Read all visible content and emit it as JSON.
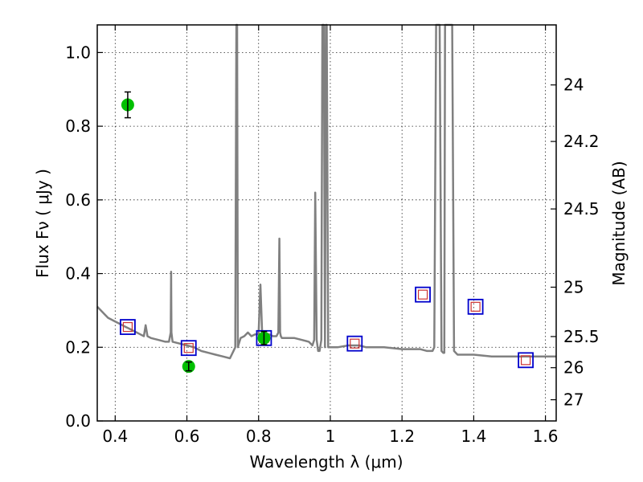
{
  "chart_data": {
    "type": "scatter",
    "xlabel": "Wavelength  λ (μm)",
    "ylabel": "Flux  Fν  ( μJy )",
    "y2label": "Magnitude (AB)",
    "xlim": [
      0.35,
      1.63
    ],
    "ylim": [
      0.0,
      1.075
    ],
    "xticks": [
      0.4,
      0.6,
      0.8,
      1.0,
      1.2,
      1.4,
      1.6
    ],
    "xtick_labels": [
      "0.4",
      "0.6",
      "0.8",
      "1",
      "1.2",
      "1.4",
      "1.6"
    ],
    "yticks": [
      0.0,
      0.2,
      0.4,
      0.6,
      0.8,
      1.0
    ],
    "ytick_labels": [
      "0.0",
      "0.2",
      "0.4",
      "0.6",
      "0.8",
      "1.0"
    ],
    "y2ticks": [
      24,
      24.2,
      24.5,
      25,
      25.5,
      26,
      27
    ],
    "y2tick_labels": [
      "24",
      "24.2",
      "24.5",
      "25",
      "25.5",
      "26",
      "27"
    ],
    "grid": true,
    "colors": {
      "model": "#808080",
      "observed": "#00c000",
      "model_band": "#0000cc",
      "model_band_inner": "#cc3333"
    },
    "model_spectrum": {
      "name": "",
      "x": [
        0.35,
        0.36,
        0.37,
        0.38,
        0.39,
        0.4,
        0.41,
        0.42,
        0.43,
        0.44,
        0.45,
        0.46,
        0.47,
        0.48,
        0.485,
        0.49,
        0.5,
        0.52,
        0.54,
        0.55,
        0.555,
        0.556,
        0.557,
        0.56,
        0.58,
        0.6,
        0.62,
        0.64,
        0.66,
        0.68,
        0.7,
        0.72,
        0.73,
        0.735,
        0.738,
        0.74,
        0.742,
        0.745,
        0.75,
        0.76,
        0.77,
        0.78,
        0.79,
        0.8,
        0.805,
        0.81,
        0.815,
        0.82,
        0.83,
        0.84,
        0.85,
        0.855,
        0.858,
        0.86,
        0.862,
        0.865,
        0.87,
        0.88,
        0.9,
        0.92,
        0.94,
        0.95,
        0.955,
        0.958,
        0.962,
        0.966,
        0.97,
        0.975,
        0.978,
        0.982,
        0.985,
        0.988,
        0.99,
        0.994,
        0.998,
        1.0,
        1.02,
        1.05,
        1.08,
        1.1,
        1.15,
        1.2,
        1.25,
        1.27,
        1.28,
        1.285,
        1.29,
        1.295,
        1.3,
        1.305,
        1.31,
        1.315,
        1.318,
        1.32,
        1.325,
        1.33,
        1.335,
        1.34,
        1.345,
        1.35,
        1.355,
        1.36,
        1.4,
        1.45,
        1.5,
        1.55,
        1.6,
        1.63
      ],
      "y": [
        0.31,
        0.3,
        0.29,
        0.28,
        0.275,
        0.27,
        0.265,
        0.26,
        0.255,
        0.25,
        0.245,
        0.24,
        0.235,
        0.23,
        0.26,
        0.23,
        0.225,
        0.22,
        0.215,
        0.215,
        0.24,
        0.405,
        0.24,
        0.215,
        0.21,
        0.205,
        0.2,
        0.19,
        0.185,
        0.18,
        0.175,
        0.17,
        0.19,
        0.2,
        1.075,
        1.075,
        0.2,
        0.21,
        0.225,
        0.23,
        0.24,
        0.23,
        0.235,
        0.235,
        0.37,
        0.235,
        0.23,
        0.235,
        0.235,
        0.23,
        0.23,
        0.24,
        0.495,
        0.24,
        0.23,
        0.225,
        0.225,
        0.225,
        0.225,
        0.22,
        0.215,
        0.205,
        0.22,
        0.62,
        0.22,
        0.19,
        0.19,
        0.22,
        1.075,
        1.075,
        0.2,
        1.075,
        1.075,
        0.2,
        0.2,
        0.2,
        0.2,
        0.205,
        0.205,
        0.2,
        0.2,
        0.195,
        0.195,
        0.19,
        0.19,
        0.19,
        0.2,
        1.075,
        1.075,
        1.075,
        0.19,
        0.185,
        0.185,
        1.075,
        1.075,
        1.075,
        1.075,
        1.075,
        0.19,
        0.185,
        0.18,
        0.18,
        0.18,
        0.175,
        0.175,
        0.175,
        0.175,
        0.175
      ]
    },
    "series": [
      {
        "name": "",
        "marker": "circle",
        "x": [
          0.435,
          0.605,
          0.815
        ],
        "y": [
          0.858,
          0.148,
          0.225
        ],
        "yerr": [
          0.035,
          0.012,
          0.018
        ]
      },
      {
        "name": "",
        "marker": "square",
        "x": [
          0.435,
          0.605,
          0.815,
          1.068,
          1.258,
          1.405,
          1.545
        ],
        "y": [
          0.255,
          0.198,
          0.225,
          0.21,
          0.343,
          0.31,
          0.165
        ]
      }
    ]
  }
}
